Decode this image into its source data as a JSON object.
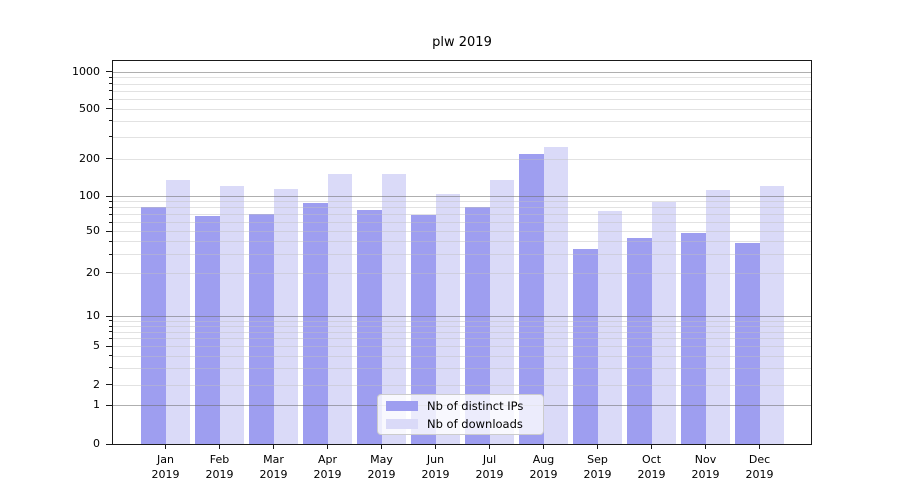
{
  "chart_data": {
    "type": "bar",
    "title": "plw 2019",
    "xlabel": "",
    "ylabel": "",
    "categories": [
      "Jan",
      "Feb",
      "Mar",
      "Apr",
      "May",
      "Jun",
      "Jul",
      "Aug",
      "Sep",
      "Oct",
      "Nov",
      "Dec"
    ],
    "category_year": "2019",
    "series": [
      {
        "name": "Nb of distinct IPs",
        "color": "#9e9ef0",
        "values": [
          80,
          68,
          70,
          88,
          76,
          69,
          81,
          217,
          34,
          43,
          48,
          39
        ]
      },
      {
        "name": "Nb of downloads",
        "color": "#dadaf8",
        "values": [
          134,
          120,
          115,
          151,
          152,
          104,
          136,
          246,
          74,
          89,
          112,
          121
        ]
      }
    ],
    "yscale": "symlog",
    "yticks": [
      0,
      1,
      2,
      5,
      10,
      20,
      50,
      100,
      200,
      500,
      1000
    ],
    "ylim": [
      0,
      1200
    ],
    "grid": {
      "major": true,
      "minor": true,
      "drawn_above_bars": true
    },
    "legend_position": "lower center"
  }
}
